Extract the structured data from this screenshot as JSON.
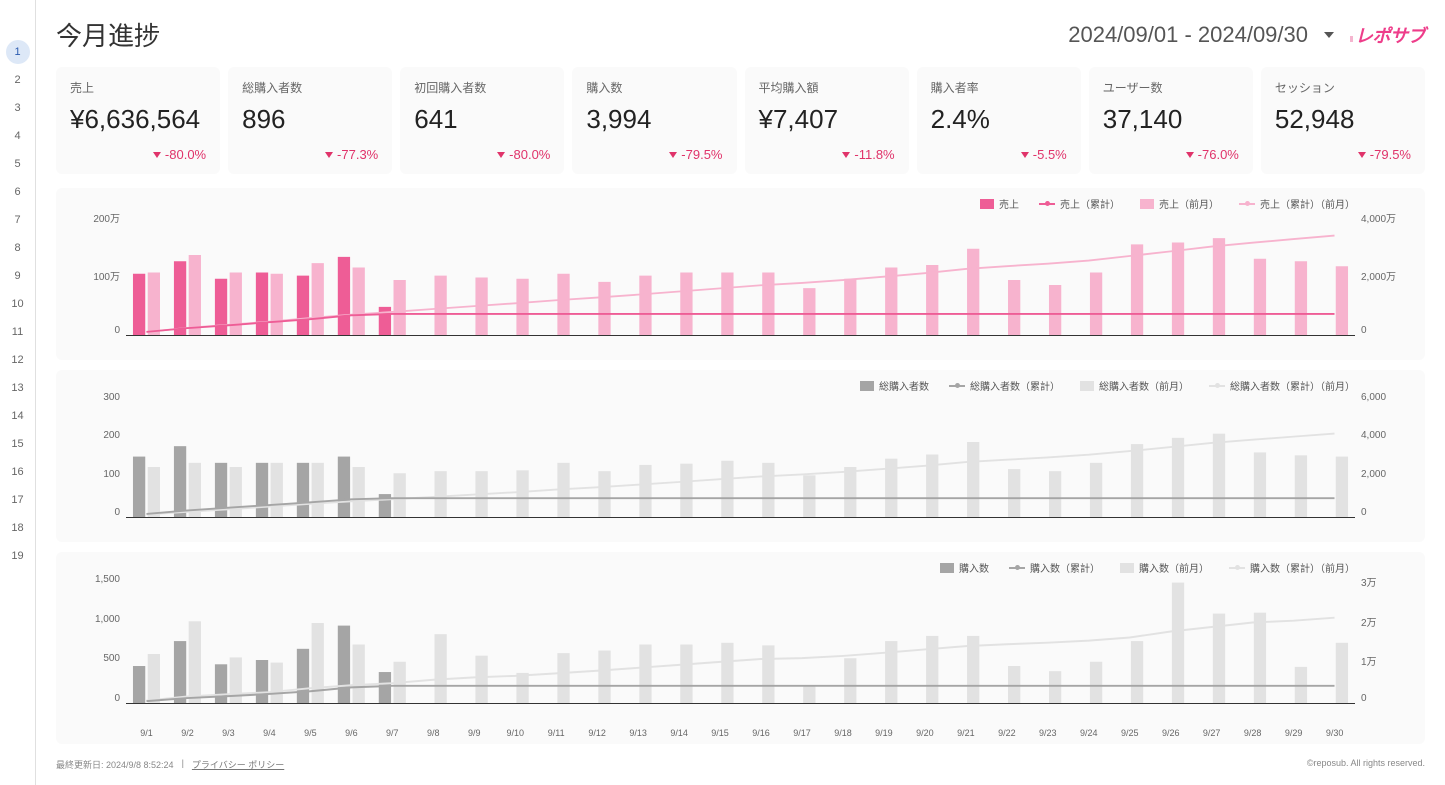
{
  "sidebar": {
    "items": [
      1,
      2,
      3,
      4,
      5,
      6,
      7,
      8,
      9,
      10,
      11,
      12,
      13,
      14,
      15,
      16,
      17,
      18,
      19
    ],
    "active": 1
  },
  "title": "今月進捗",
  "date_range": "2024/09/01 - 2024/09/30",
  "logo": "レポサブ",
  "cards": [
    {
      "label": "売上",
      "value": "¥6,636,564",
      "change": "-80.0%"
    },
    {
      "label": "総購入者数",
      "value": "896",
      "change": "-77.3%"
    },
    {
      "label": "初回購入者数",
      "value": "641",
      "change": "-80.0%"
    },
    {
      "label": "購入数",
      "value": "3,994",
      "change": "-79.5%"
    },
    {
      "label": "平均購入額",
      "value": "¥7,407",
      "change": "-11.8%"
    },
    {
      "label": "購入者率",
      "value": "2.4%",
      "change": "-5.5%"
    },
    {
      "label": "ユーザー数",
      "value": "37,140",
      "change": "-76.0%"
    },
    {
      "label": "セッション",
      "value": "52,948",
      "change": "-79.5%"
    }
  ],
  "chart1": {
    "type": "bar+line",
    "x_labels": [
      "9/1",
      "9/2",
      "9/3",
      "9/4",
      "9/5",
      "9/6",
      "9/7",
      "9/8",
      "9/9",
      "9/10",
      "9/11",
      "9/12",
      "9/13",
      "9/14",
      "9/15",
      "9/16",
      "9/17",
      "9/18",
      "9/19",
      "9/20",
      "9/21",
      "9/22",
      "9/23",
      "9/24",
      "9/25",
      "9/26",
      "9/27",
      "9/28",
      "9/29",
      "9/30"
    ],
    "y_left_ticks": [
      "200万",
      "100万",
      "0"
    ],
    "y_left_max": 200,
    "y_right_ticks": [
      "4,000万",
      "2,000万",
      "0"
    ],
    "y_right_max": 4000,
    "legend": [
      {
        "label": "売上",
        "type": "bar",
        "color": "#ee5d96"
      },
      {
        "label": "売上（累計）",
        "type": "line",
        "color": "#ee5d96"
      },
      {
        "label": "売上（前月）",
        "type": "bar",
        "color": "#f7b3ce"
      },
      {
        "label": "売上（累計）（前月）",
        "type": "line",
        "color": "#f7b3ce"
      }
    ],
    "bars_current": [
      98,
      118,
      90,
      100,
      95,
      125,
      45,
      0,
      0,
      0,
      0,
      0,
      0,
      0,
      0,
      0,
      0,
      0,
      0,
      0,
      0,
      0,
      0,
      0,
      0,
      0,
      0,
      0,
      0,
      0
    ],
    "bars_prev": [
      100,
      128,
      100,
      98,
      115,
      108,
      88,
      95,
      92,
      90,
      98,
      85,
      95,
      100,
      100,
      100,
      75,
      90,
      108,
      112,
      138,
      88,
      80,
      100,
      145,
      148,
      155,
      122,
      118,
      110
    ],
    "line_current": [
      100,
      220,
      310,
      410,
      505,
      630,
      675,
      675,
      675,
      675,
      675,
      675,
      675,
      675,
      675,
      675,
      675,
      675,
      675,
      675,
      675,
      675,
      675,
      675,
      675,
      675,
      675,
      675,
      675,
      675
    ],
    "line_prev": [
      100,
      228,
      328,
      426,
      541,
      649,
      737,
      832,
      924,
      1014,
      1112,
      1197,
      1292,
      1392,
      1492,
      1592,
      1667,
      1757,
      1865,
      1977,
      2115,
      2203,
      2283,
      2383,
      2528,
      2676,
      2831,
      2953,
      3071,
      3181
    ]
  },
  "chart2": {
    "type": "bar+line",
    "y_left_ticks": [
      "300",
      "200",
      "100",
      "0"
    ],
    "y_left_max": 300,
    "y_right_ticks": [
      "6,000",
      "4,000",
      "2,000",
      "0"
    ],
    "y_right_max": 6000,
    "legend": [
      {
        "label": "総購入者数",
        "type": "bar",
        "color": "#a5a5a5"
      },
      {
        "label": "総購入者数（累計）",
        "type": "line",
        "color": "#a5a5a5"
      },
      {
        "label": "総購入者数（前月）",
        "type": "bar",
        "color": "#e2e2e2"
      },
      {
        "label": "総購入者数（累計）（前月）",
        "type": "line",
        "color": "#e2e2e2"
      }
    ],
    "bars_current": [
      145,
      170,
      130,
      130,
      130,
      145,
      55,
      0,
      0,
      0,
      0,
      0,
      0,
      0,
      0,
      0,
      0,
      0,
      0,
      0,
      0,
      0,
      0,
      0,
      0,
      0,
      0,
      0,
      0,
      0
    ],
    "bars_prev": [
      120,
      130,
      120,
      130,
      130,
      120,
      105,
      110,
      110,
      112,
      130,
      110,
      125,
      128,
      135,
      130,
      100,
      120,
      140,
      150,
      180,
      115,
      110,
      130,
      175,
      190,
      200,
      155,
      148,
      145
    ],
    "line_current": [
      145,
      315,
      445,
      575,
      705,
      850,
      905,
      905,
      905,
      905,
      905,
      905,
      905,
      905,
      905,
      905,
      905,
      905,
      905,
      905,
      905,
      905,
      905,
      905,
      905,
      905,
      905,
      905,
      905,
      905
    ],
    "line_prev": [
      120,
      250,
      370,
      500,
      630,
      750,
      855,
      965,
      1075,
      1187,
      1317,
      1427,
      1552,
      1680,
      1815,
      1945,
      2045,
      2165,
      2305,
      2455,
      2635,
      2750,
      2860,
      2990,
      3165,
      3355,
      3555,
      3710,
      3858,
      4003
    ]
  },
  "chart3": {
    "type": "bar+line",
    "y_left_ticks": [
      "1,500",
      "1,000",
      "500",
      "0"
    ],
    "y_left_max": 1500,
    "y_right_ticks": [
      "3万",
      "2万",
      "1万",
      "0"
    ],
    "y_right_max": 30000,
    "legend": [
      {
        "label": "購入数",
        "type": "bar",
        "color": "#a5a5a5"
      },
      {
        "label": "購入数（累計）",
        "type": "line",
        "color": "#a5a5a5"
      },
      {
        "label": "購入数（前月）",
        "type": "bar",
        "color": "#e2e2e2"
      },
      {
        "label": "購入数（累計）（前月）",
        "type": "line",
        "color": "#e2e2e2"
      }
    ],
    "bars_current": [
      430,
      720,
      450,
      500,
      630,
      900,
      360,
      0,
      0,
      0,
      0,
      0,
      0,
      0,
      0,
      0,
      0,
      0,
      0,
      0,
      0,
      0,
      0,
      0,
      0,
      0,
      0,
      0,
      0,
      0
    ],
    "bars_prev": [
      570,
      950,
      530,
      470,
      930,
      680,
      480,
      800,
      550,
      350,
      580,
      610,
      680,
      680,
      700,
      670,
      200,
      520,
      720,
      780,
      780,
      430,
      370,
      480,
      720,
      1400,
      1040,
      1050,
      420,
      700
    ],
    "line_current": [
      430,
      1150,
      1600,
      2100,
      2730,
      3630,
      3990,
      3990,
      3990,
      3990,
      3990,
      3990,
      3990,
      3990,
      3990,
      3990,
      3990,
      3990,
      3990,
      3990,
      3990,
      3990,
      3990,
      3990,
      3990,
      3990,
      3990,
      3990,
      3990,
      3990
    ],
    "line_prev": [
      570,
      1520,
      2050,
      2520,
      3450,
      4130,
      4610,
      5410,
      5960,
      6310,
      6890,
      7500,
      8180,
      8860,
      9560,
      10230,
      10430,
      10950,
      11670,
      12450,
      13230,
      13660,
      14030,
      14510,
      15230,
      16630,
      17670,
      18720,
      19140,
      19840
    ]
  },
  "footer": {
    "updated": "最終更新日: 2024/9/8 8:52:24",
    "privacy": "プライバシー ポリシー",
    "copyright": "©reposub. All rights reserved."
  },
  "colors": {
    "pink": "#ee5d96",
    "pink_lt": "#f7b3ce",
    "grey": "#a5a5a5",
    "grey_lt": "#e2e2e2"
  }
}
